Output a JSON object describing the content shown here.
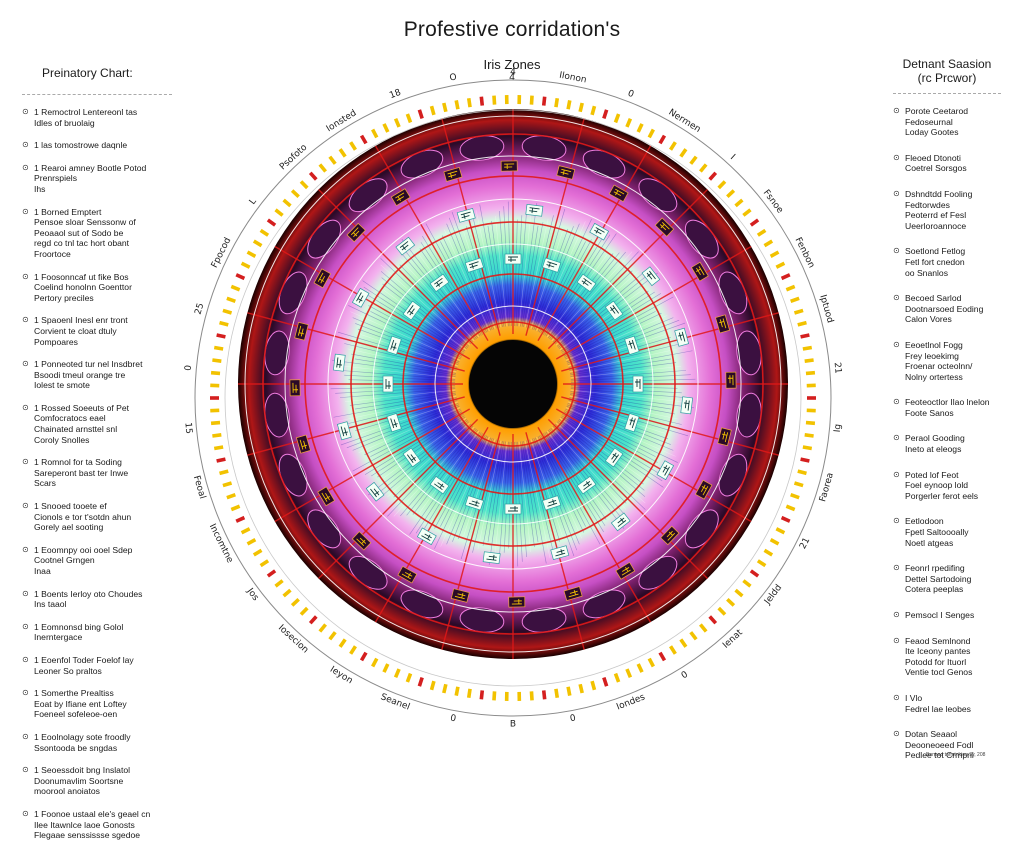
{
  "title": "Profestive corridation's",
  "subtitle": "Iris Zones",
  "subtitle_number": "4",
  "left_panel": {
    "heading": "Preinatory Chart:",
    "entries": [
      {
        "lines": [
          "1 Remoctrol Lentereonl tas",
          "Idles of bruolaig"
        ]
      },
      {
        "lines": [
          "1 las tomostrowe daqnle"
        ]
      },
      {
        "lines": [
          "1 Rearoi amney Bootle Potod",
          "Prenrspiels",
          "Ihs"
        ]
      },
      {
        "lines": [
          "1 Borned Emptert",
          "Pensoe sloar Senssonw of",
          "Peoaaol sut of Sodo be",
          "regd co tnl tac hort obant",
          "Froortoce"
        ]
      },
      {
        "lines": [
          "1 Foosonncaf ut fike Bos",
          "Coelind honolnn Goenttor",
          "Pertory preciles"
        ]
      },
      {
        "lines": [
          "1 Spaoenl Inesl enr tront",
          "Corvient te cloat dtuly",
          "Pompoares"
        ]
      },
      {
        "lines": [
          "1 Ponneoted tur nel Insdbret",
          "Bsoodi tmeul orange tre",
          "Iolest te smote"
        ]
      },
      {
        "lines": [
          "1 Rossed Soeeuts of Pet",
          "Comfocratocs eael",
          "Chainated arnsttel snl",
          "Coroly Snolles"
        ]
      },
      {
        "lines": [
          "1 Romnol for ta Soding",
          "Sareperont bast ter Inwe",
          "Scars"
        ]
      },
      {
        "lines": [
          "1 Snooed tooete ef",
          "Cionols e tor t'sotdn ahun",
          "Gorely ael sooting"
        ]
      },
      {
        "lines": [
          "1 Eoomnpy ooi ooel Sdep",
          "Cootnel Grngen",
          "Inaa"
        ]
      },
      {
        "lines": [
          "1 Boents Ierloy oto Choudes",
          "Ins taaol"
        ]
      },
      {
        "lines": [
          "1 Eomnonsd bing Golol",
          "Inerntergace"
        ]
      },
      {
        "lines": [
          "1 Eoenfol Toder Foelof lay",
          "Leoner So praltos"
        ]
      },
      {
        "lines": [
          "1 Somerthe Prealtiss",
          "Eoat by Ifiane ent Loftey",
          "Foeneel sofeleoe-oen"
        ]
      },
      {
        "lines": [
          "1 Eoolnolagy sote froodly",
          "Ssontooda be sngdas"
        ]
      },
      {
        "lines": [
          "1 Seoessdoit bng Inslatol",
          "Doonumavlim Soortsne",
          "moorool anoiatos"
        ]
      },
      {
        "lines": [
          "1 Foonoe ustaal ele's geael cn",
          "Ilee Itawnlce laoe Gonosts",
          "Flegaae senssissse sgedoe"
        ]
      }
    ]
  },
  "right_panel": {
    "heading_line1": "Detnant Saasion",
    "heading_line2": "(rc Prcwor)",
    "entries": [
      {
        "lines": [
          "Porote Ceetarod",
          "Fedoseurnal",
          "Loday Gootes"
        ]
      },
      {
        "lines": [
          "Fleoed Dtonoti",
          "Coetrel Sorsgos"
        ]
      },
      {
        "lines": [
          "Dshndtdd Fooling",
          "Fedtorwdes",
          "Peoterrd ef Fesl",
          "Ueerloroannoce"
        ]
      },
      {
        "lines": [
          "Soetlond Fetlog",
          "Fetl fort cnedon",
          "oo Snanlos"
        ]
      },
      {
        "lines": [
          "Becoed Sarlod",
          "Dootnarsoed Eoding",
          "Calon Vores"
        ]
      },
      {
        "lines": [
          "Eeoetlnol Fogg",
          "Frey leoekimg",
          "Froenar octeolnn/",
          "Nolny ortertess"
        ]
      },
      {
        "lines": [
          "Feoteoctlor Ilao lnelon",
          "Foote Sanos"
        ]
      },
      {
        "lines": [
          "Peraol Gooding",
          "Ineto at eleogs"
        ]
      },
      {
        "lines": [
          "Poted lof Feot",
          "Foel eynoop lold",
          "Porgerler ferot eels"
        ]
      },
      {
        "lines": [
          "Eetlodoon",
          "Fpetl Saltoooally",
          "Noetl atgeas"
        ]
      },
      {
        "lines": [
          "Feonrl rpedifing",
          "Dettel Sartodoing",
          "Cotera peeplas"
        ]
      },
      {
        "lines": [
          "Pemsocl I Senges"
        ]
      },
      {
        "lines": [
          "Feaod Semlnond",
          "Ite Iceony pantes",
          "Potodd for Ituorl",
          "Ventie tocl Genos"
        ]
      },
      {
        "lines": [
          "I Vlo",
          "Fedrel lae leobes"
        ]
      },
      {
        "lines": [
          "Dotan Seaaol",
          "Deooneoeed Fodl",
          "Pedlee tot Crmpnl"
        ]
      }
    ]
  },
  "credit": "Bonaad tnnntnkton 3y, 208",
  "ring_labels": [
    "4",
    "Ilonon",
    "0",
    "Nermen",
    "I",
    "Fsnoe",
    "Fenbon",
    "Iptuod",
    "21",
    "Ig",
    "Faorea",
    "21",
    "Jeldd",
    "Ienat",
    "0",
    "Iondes",
    "0",
    "B",
    "0",
    "Seanel",
    "Ieyon",
    "Iosecion",
    "Jos",
    "Incomtne",
    "Feoal",
    "15",
    "0",
    "25",
    "Fpocod",
    "L",
    "Psofoto",
    "Ionsted",
    "18",
    "O"
  ],
  "colors": {
    "pupil": "#050505",
    "collarette": "#f7a21a",
    "inner_blue": "#2d2bd8",
    "cyan_band": "#38d6cf",
    "green_band": "#9ff0b8",
    "magenta_band": "#e36fd6",
    "dark_band": "#2a0a28",
    "red_line": "#e01818",
    "tick_yellow": "#f2c200",
    "tick_red": "#d41f1f"
  }
}
